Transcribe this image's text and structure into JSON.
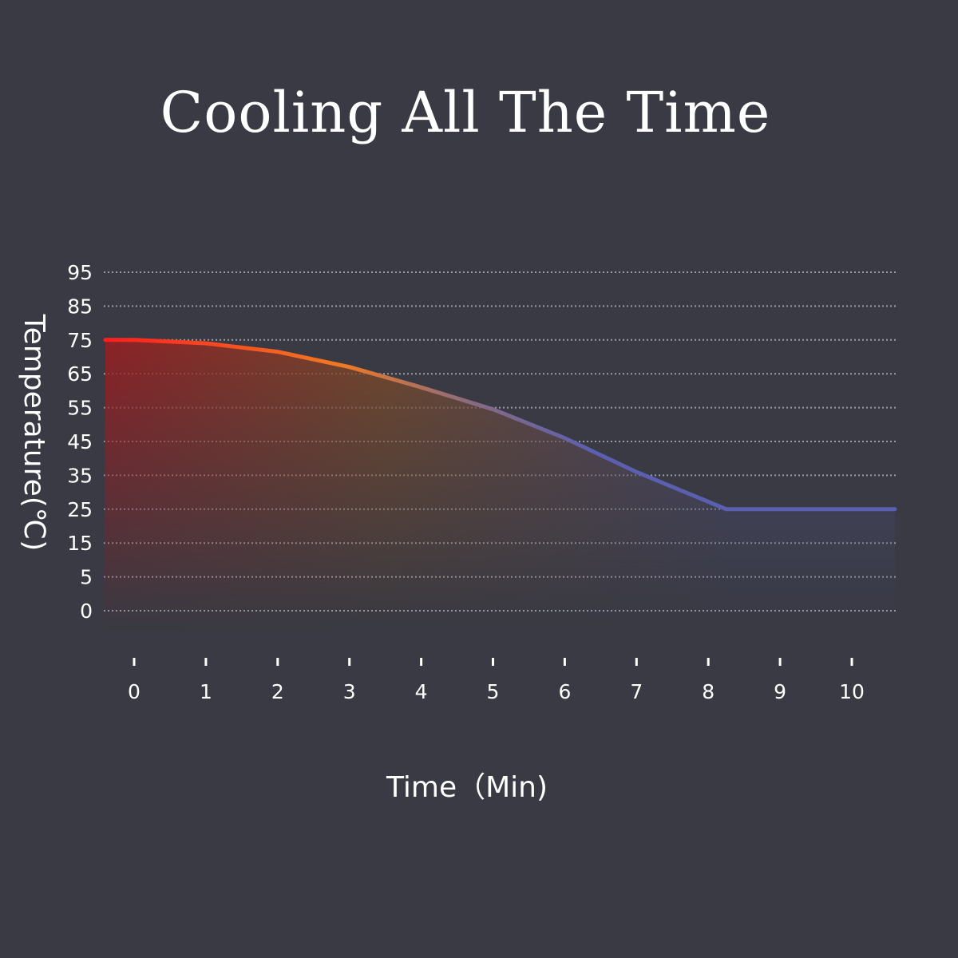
{
  "title": "Cooling All The Time",
  "colors": {
    "background": "#393a43",
    "hot": "#ff1e1e",
    "warm": "#f07a23",
    "cool": "#5a5fb0"
  },
  "chart_data": {
    "type": "line",
    "title": "Cooling All The Time",
    "xlabel": "Time（Min)",
    "ylabel": "Temperature(℃)",
    "x_ticks": [
      "0",
      "1",
      "2",
      "3",
      "4",
      "5",
      "6",
      "7",
      "8",
      "9",
      "10"
    ],
    "y_ticks": [
      "95",
      "85",
      "75",
      "65",
      "55",
      "45",
      "35",
      "25",
      "15",
      "5",
      "0"
    ],
    "xlim": [
      0,
      10.6
    ],
    "grid": true,
    "area_fill": true,
    "series": [
      {
        "x": [
          -0.4,
          0,
          1,
          2,
          3,
          4,
          5,
          6,
          7,
          8.25,
          10.6
        ],
        "y": [
          75,
          75,
          74,
          71.5,
          67,
          61,
          54.5,
          46,
          36,
          25,
          25
        ]
      }
    ]
  }
}
